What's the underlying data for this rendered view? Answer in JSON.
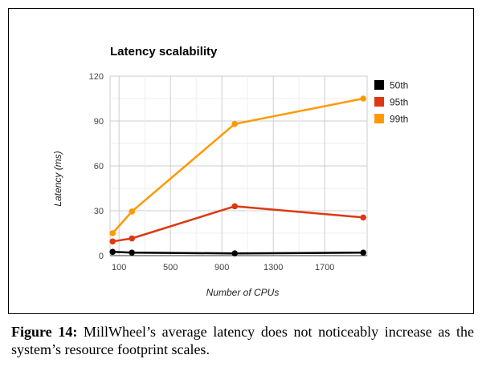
{
  "chart_data": {
    "type": "line",
    "title": "Latency scalability",
    "xlabel": "Number of CPUs",
    "ylabel": "Latency (ms)",
    "x": [
      50,
      200,
      1000,
      2000
    ],
    "x_ticks": [
      100,
      500,
      900,
      1300,
      1700
    ],
    "y_ticks": [
      0,
      30,
      60,
      90,
      120
    ],
    "xlim": [
      30,
      2030
    ],
    "ylim": [
      0,
      120
    ],
    "grid": true,
    "legend_position": "right",
    "series": [
      {
        "name": "50th",
        "color": "#000000",
        "values": [
          2.5,
          2,
          1.5,
          2
        ]
      },
      {
        "name": "95th",
        "color": "#dc3912",
        "values": [
          9.5,
          11.5,
          33,
          25.5
        ]
      },
      {
        "name": "99th",
        "color": "#ff9900",
        "values": [
          15,
          29.5,
          88,
          105
        ]
      }
    ]
  },
  "caption": {
    "label": "Figure 14:",
    "text": " MillWheel’s average latency does not noticeably increase as the system’s resource footprint scales."
  }
}
